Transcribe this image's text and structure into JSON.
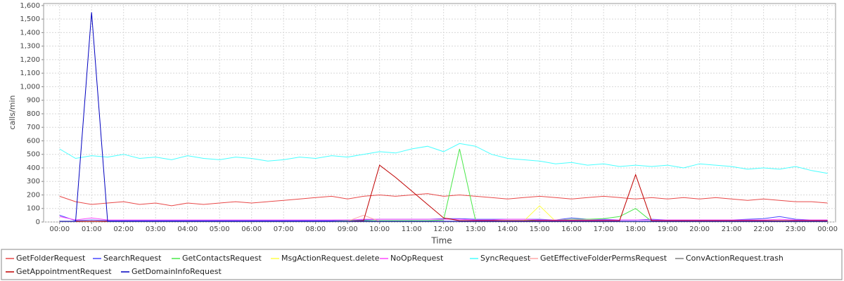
{
  "chart_data": {
    "type": "line",
    "y_label": "calls/min",
    "x_label": "Time",
    "grid": true,
    "legend": "bottom",
    "xlim": [
      -0.5,
      24.25
    ],
    "ylim": [
      0,
      1615
    ],
    "xticks": [
      {
        "value": 0,
        "label": "00:00"
      },
      {
        "value": 1,
        "label": "01:00"
      },
      {
        "value": 2,
        "label": "02:00"
      },
      {
        "value": 3,
        "label": "03:00"
      },
      {
        "value": 4,
        "label": "04:00"
      },
      {
        "value": 5,
        "label": "05:00"
      },
      {
        "value": 6,
        "label": "06:00"
      },
      {
        "value": 7,
        "label": "07:00"
      },
      {
        "value": 8,
        "label": "08:00"
      },
      {
        "value": 9,
        "label": "09:00"
      },
      {
        "value": 10,
        "label": "10:00"
      },
      {
        "value": 11,
        "label": "11:00"
      },
      {
        "value": 12,
        "label": "12:00"
      },
      {
        "value": 13,
        "label": "13:00"
      },
      {
        "value": 14,
        "label": "14:00"
      },
      {
        "value": 15,
        "label": "15:00"
      },
      {
        "value": 16,
        "label": "16:00"
      },
      {
        "value": 17,
        "label": "17:00"
      },
      {
        "value": 18,
        "label": "18:00"
      },
      {
        "value": 19,
        "label": "19:00"
      },
      {
        "value": 20,
        "label": "20:00"
      },
      {
        "value": 21,
        "label": "21:00"
      },
      {
        "value": 22,
        "label": "22:00"
      },
      {
        "value": 23,
        "label": "23:00"
      },
      {
        "value": 24,
        "label": "00:00"
      }
    ],
    "yticks": [
      0,
      100,
      200,
      300,
      400,
      500,
      600,
      700,
      800,
      900,
      {
        "value": 1000,
        "label": "1,000"
      },
      {
        "value": 1100,
        "label": "1,100"
      },
      {
        "value": 1200,
        "label": "1,200"
      },
      {
        "value": 1300,
        "label": "1,300"
      },
      {
        "value": 1400,
        "label": "1,400"
      },
      {
        "value": 1500,
        "label": "1,500"
      },
      {
        "value": 1600,
        "label": "1,600"
      }
    ],
    "x": [
      0,
      0.5,
      1,
      1.5,
      2,
      2.5,
      3,
      3.5,
      4,
      4.5,
      5,
      5.5,
      6,
      6.5,
      7,
      7.5,
      8,
      8.5,
      9,
      9.5,
      10,
      10.5,
      11,
      11.5,
      12,
      12.5,
      13,
      13.5,
      14,
      14.5,
      15,
      15.5,
      16,
      16.5,
      17,
      17.5,
      18,
      18.5,
      19,
      19.5,
      20,
      20.5,
      21,
      21.5,
      22,
      22.5,
      23,
      23.5,
      24
    ],
    "series": [
      {
        "name": "GetFolderRequest",
        "color": "#e84848",
        "values": [
          190,
          150,
          130,
          140,
          150,
          130,
          140,
          120,
          140,
          130,
          140,
          150,
          140,
          150,
          160,
          170,
          180,
          190,
          170,
          190,
          200,
          190,
          200,
          210,
          190,
          200,
          190,
          180,
          170,
          180,
          190,
          180,
          170,
          180,
          190,
          180,
          170,
          180,
          170,
          180,
          170,
          180,
          170,
          160,
          170,
          160,
          150,
          150,
          140
        ]
      },
      {
        "name": "SearchRequest",
        "color": "#4848ff",
        "values": [
          50,
          10,
          15,
          10,
          10,
          10,
          10,
          10,
          10,
          10,
          10,
          10,
          10,
          10,
          10,
          10,
          10,
          10,
          15,
          15,
          20,
          20,
          20,
          20,
          25,
          25,
          20,
          20,
          20,
          20,
          20,
          15,
          30,
          20,
          20,
          15,
          15,
          20,
          15,
          15,
          15,
          15,
          15,
          20,
          25,
          40,
          20,
          15,
          15
        ]
      },
      {
        "name": "GetContactsRequest",
        "color": "#48e848",
        "values": [
          5,
          5,
          5,
          5,
          5,
          5,
          5,
          5,
          5,
          5,
          5,
          5,
          5,
          5,
          5,
          5,
          5,
          5,
          10,
          10,
          10,
          10,
          10,
          10,
          15,
          540,
          10,
          10,
          10,
          10,
          15,
          15,
          20,
          20,
          25,
          40,
          100,
          5,
          5,
          5,
          5,
          5,
          5,
          5,
          5,
          5,
          5,
          5,
          5
        ]
      },
      {
        "name": "MsgActionRequest.delete",
        "color": "#ffff48",
        "values": [
          5,
          5,
          5,
          5,
          5,
          5,
          5,
          5,
          5,
          5,
          5,
          5,
          5,
          5,
          5,
          5,
          5,
          5,
          5,
          5,
          5,
          5,
          5,
          5,
          5,
          5,
          5,
          5,
          5,
          5,
          120,
          5,
          5,
          5,
          5,
          5,
          5,
          5,
          5,
          5,
          5,
          5,
          5,
          5,
          5,
          5,
          5,
          5,
          5
        ]
      },
      {
        "name": "NoOpRequest",
        "color": "#ff48ff",
        "values": [
          40,
          15,
          30,
          15,
          15,
          15,
          15,
          15,
          15,
          15,
          15,
          15,
          15,
          15,
          15,
          15,
          15,
          15,
          15,
          20,
          20,
          20,
          20,
          20,
          20,
          20,
          15,
          15,
          20,
          20,
          15,
          15,
          15,
          15,
          15,
          15,
          15,
          15,
          15,
          15,
          15,
          15,
          15,
          15,
          15,
          20,
          15,
          15,
          15
        ]
      },
      {
        "name": "SyncRequest",
        "color": "#48ffff",
        "values": [
          540,
          470,
          490,
          480,
          500,
          470,
          480,
          460,
          490,
          470,
          460,
          480,
          470,
          450,
          460,
          480,
          470,
          490,
          480,
          500,
          520,
          510,
          540,
          560,
          520,
          580,
          560,
          500,
          470,
          460,
          450,
          430,
          440,
          420,
          430,
          410,
          420,
          410,
          420,
          400,
          430,
          420,
          410,
          390,
          400,
          390,
          410,
          380,
          360
        ]
      },
      {
        "name": "GetEffectiveFolderPermsRequest",
        "color": "#ffa8a8",
        "values": [
          5,
          5,
          5,
          5,
          5,
          5,
          5,
          5,
          5,
          5,
          5,
          5,
          5,
          5,
          5,
          5,
          5,
          5,
          5,
          50,
          5,
          5,
          5,
          5,
          5,
          5,
          5,
          5,
          5,
          5,
          5,
          5,
          5,
          5,
          5,
          5,
          5,
          5,
          5,
          5,
          5,
          5,
          5,
          5,
          5,
          5,
          5,
          5,
          5
        ]
      },
      {
        "name": "ConvActionRequest.trash",
        "color": "#808080",
        "values": [
          3,
          3,
          3,
          3,
          3,
          3,
          3,
          3,
          3,
          3,
          3,
          3,
          3,
          3,
          3,
          3,
          3,
          3,
          3,
          3,
          3,
          3,
          3,
          3,
          3,
          3,
          3,
          3,
          3,
          3,
          3,
          3,
          3,
          3,
          3,
          3,
          3,
          3,
          3,
          3,
          3,
          3,
          3,
          3,
          3,
          3,
          3,
          3,
          3
        ]
      },
      {
        "name": "GetAppointmentRequest",
        "color": "#c00000",
        "values": [
          5,
          5,
          5,
          5,
          5,
          5,
          5,
          5,
          5,
          5,
          5,
          5,
          5,
          5,
          5,
          5,
          5,
          5,
          5,
          10,
          420,
          330,
          230,
          130,
          30,
          10,
          10,
          10,
          10,
          10,
          10,
          10,
          10,
          10,
          10,
          10,
          350,
          10,
          10,
          10,
          10,
          10,
          10,
          10,
          10,
          10,
          10,
          10,
          10
        ]
      },
      {
        "name": "GetDomainInfoRequest",
        "color": "#0000c0",
        "values": [
          5,
          5,
          1550,
          5,
          5,
          5,
          5,
          5,
          5,
          5,
          5,
          5,
          5,
          5,
          5,
          5,
          5,
          5,
          5,
          5,
          5,
          5,
          5,
          5,
          5,
          5,
          5,
          5,
          5,
          5,
          5,
          5,
          5,
          5,
          5,
          5,
          5,
          5,
          5,
          5,
          5,
          5,
          5,
          5,
          5,
          5,
          5,
          5,
          5
        ]
      }
    ]
  }
}
